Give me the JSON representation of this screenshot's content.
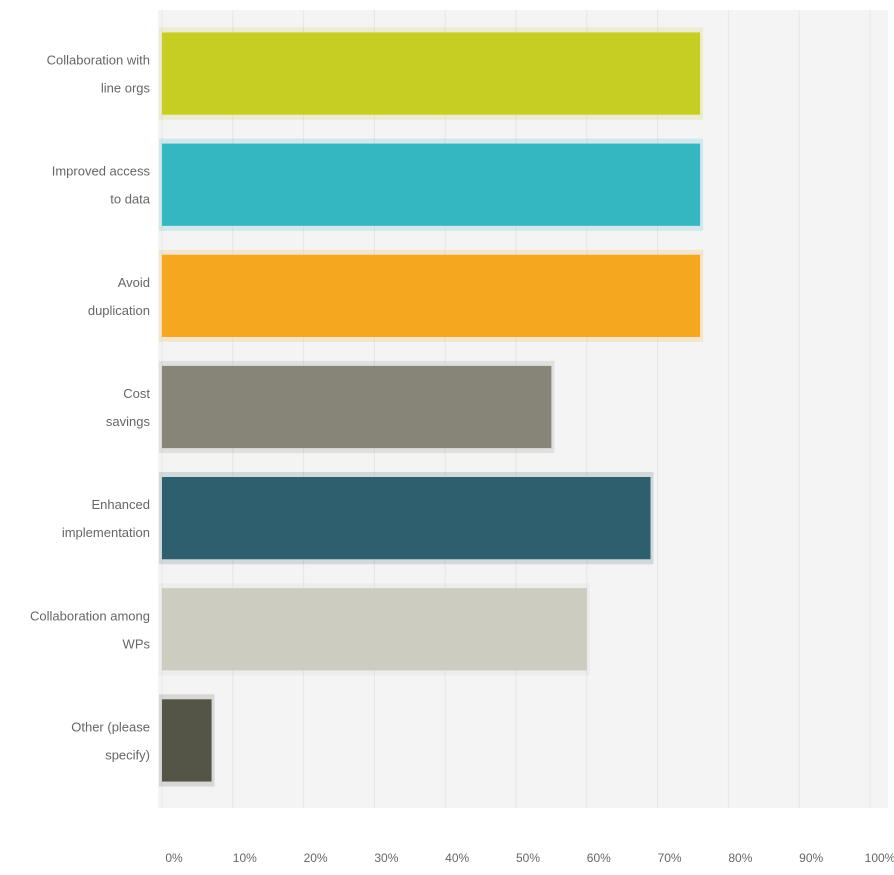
{
  "chart_data": {
    "type": "bar",
    "orientation": "horizontal",
    "categories": [
      "Collaboration with line orgs",
      "Improved access to data",
      "Avoid duplication",
      "Cost savings",
      "Enhanced implementation",
      "Collaboration among WPs",
      "Other (please specify)"
    ],
    "values": [
      76,
      76,
      76,
      55,
      69,
      60,
      7
    ],
    "colors": [
      "#c6cd23",
      "#35b7c2",
      "#f5a81f",
      "#878478",
      "#2d5f6e",
      "#cccdc0",
      "#545447"
    ],
    "x_ticks": [
      "0%",
      "10%",
      "20%",
      "30%",
      "40%",
      "50%",
      "60%",
      "70%",
      "80%",
      "90%",
      "100%"
    ],
    "xlim": [
      0,
      100
    ],
    "grid": true,
    "title": "",
    "xlabel": "",
    "ylabel": ""
  }
}
